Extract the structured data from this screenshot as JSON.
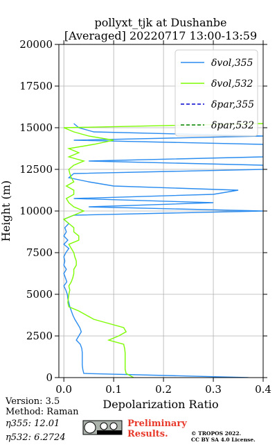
{
  "chart_data": {
    "type": "line",
    "title": "pollyxt_tjk at Dushanbe",
    "subtitle": "[Averaged] 20220717 13:00-13:59",
    "x_label": "Depolarization Ratio",
    "y_label": "Height (m)",
    "y": [
      0,
      250,
      500,
      750,
      1000,
      1250,
      1500,
      1750,
      2000,
      2250,
      2500,
      2750,
      3000,
      3250,
      3500,
      3750,
      4000,
      4250,
      4500,
      4750,
      5000,
      5250,
      5500,
      5750,
      6000,
      6250,
      6500,
      6750,
      7000,
      7250,
      7500,
      7750,
      8000,
      8250,
      8500,
      8750,
      9000,
      9250,
      9500,
      9750,
      10000,
      10250,
      10500,
      10750,
      11000,
      11250,
      11500,
      11750,
      12000,
      12250,
      12500,
      12750,
      13000,
      13250,
      13500,
      13750,
      14000,
      14250,
      14500,
      14750,
      15000,
      15250
    ],
    "series": [
      {
        "name": "δvol,355",
        "color": "#2a8cf0",
        "dash": false,
        "values": [
          0.37,
          0.04,
          0.038,
          0.037,
          0.037,
          0.037,
          0.037,
          0.036,
          0.033,
          0.025,
          0.03,
          0.035,
          0.032,
          0.027,
          0.022,
          0.018,
          0.015,
          0.012,
          0.01,
          0.008,
          0.007,
          0.004,
          0.0,
          0.006,
          0.003,
          0.0,
          0.005,
          0.0,
          0.002,
          0.0,
          0.004,
          0.01,
          0.0,
          0.008,
          0.0,
          0.005,
          0.002,
          0.01,
          0.0,
          0.02,
          0.4,
          0.05,
          0.3,
          0.02,
          0.3,
          0.35,
          0.1,
          0.05,
          0.01,
          0.02,
          0.4,
          0.4,
          0.05,
          0.4,
          0.4,
          0.4,
          0.4,
          0.02,
          0.4,
          0.06,
          0.03,
          0.02
        ]
      },
      {
        "name": "δvol,532",
        "color": "#7cfc00",
        "dash": false,
        "values": [
          0.14,
          0.125,
          0.123,
          0.123,
          0.123,
          0.123,
          0.123,
          0.122,
          0.12,
          0.09,
          0.11,
          0.125,
          0.12,
          0.09,
          0.06,
          0.045,
          0.03,
          0.01,
          0.008,
          0.009,
          0.01,
          0.012,
          0.01,
          0.015,
          0.018,
          0.02,
          0.02,
          0.025,
          0.025,
          0.022,
          0.02,
          0.015,
          0.01,
          0.03,
          0.03,
          0.02,
          0.02,
          0.01,
          0.0,
          0.02,
          0.04,
          0.02,
          0.01,
          0.005,
          0.02,
          0.02,
          0.005,
          0.02,
          0.015,
          0.012,
          0.01,
          0.02,
          0.04,
          0.01,
          0.03,
          0.01,
          0.06,
          0.1,
          0.05,
          0.02,
          0.0,
          0.4
        ]
      },
      {
        "name": "δpar,355",
        "color": "#0000cd",
        "dash": true,
        "values": [
          null,
          null,
          null,
          null,
          null,
          null,
          null,
          null,
          null,
          null,
          null,
          null,
          null,
          null,
          null,
          null,
          null,
          null,
          null,
          null,
          null,
          null,
          null,
          null,
          null,
          null,
          null,
          null,
          null,
          null,
          null,
          null,
          null,
          null,
          null,
          null,
          null,
          null,
          null,
          null,
          null,
          null,
          null,
          null,
          null,
          null,
          null,
          null,
          null,
          null,
          null,
          null,
          null,
          null,
          null,
          null,
          null,
          null,
          null,
          null,
          null,
          null
        ]
      },
      {
        "name": "δpar,532",
        "color": "#008000",
        "dash": true,
        "values": [
          null,
          null,
          null,
          null,
          null,
          null,
          null,
          null,
          null,
          null,
          null,
          null,
          null,
          null,
          null,
          null,
          null,
          null,
          null,
          null,
          null,
          null,
          null,
          null,
          null,
          null,
          null,
          null,
          null,
          null,
          null,
          null,
          null,
          null,
          null,
          null,
          null,
          null,
          null,
          null,
          null,
          null,
          null,
          null,
          null,
          null,
          null,
          null,
          null,
          null,
          null,
          null,
          null,
          null,
          null,
          null,
          null,
          null,
          null,
          null,
          null,
          null
        ]
      }
    ],
    "xlim": [
      -0.01,
      0.4
    ],
    "xticks": [
      {
        "value": 0,
        "label": "0.0"
      },
      0.1,
      0.2,
      0.3,
      0.4
    ],
    "ylim": [
      0,
      20000
    ],
    "yticks": [
      0,
      2500,
      5000,
      7500,
      10000,
      12500,
      15000,
      17500,
      20000
    ],
    "grid": true,
    "legend": "upper right"
  },
  "footer": {
    "version": "Version: 3.5",
    "method": "Method: Raman",
    "eta355": "η355:  12.01",
    "eta532": "η532: 6.2724",
    "preliminary": [
      "Preliminary",
      "Results."
    ],
    "copyright": [
      "© TROPOS 2022.",
      "CC BY SA 4.0 License."
    ]
  }
}
